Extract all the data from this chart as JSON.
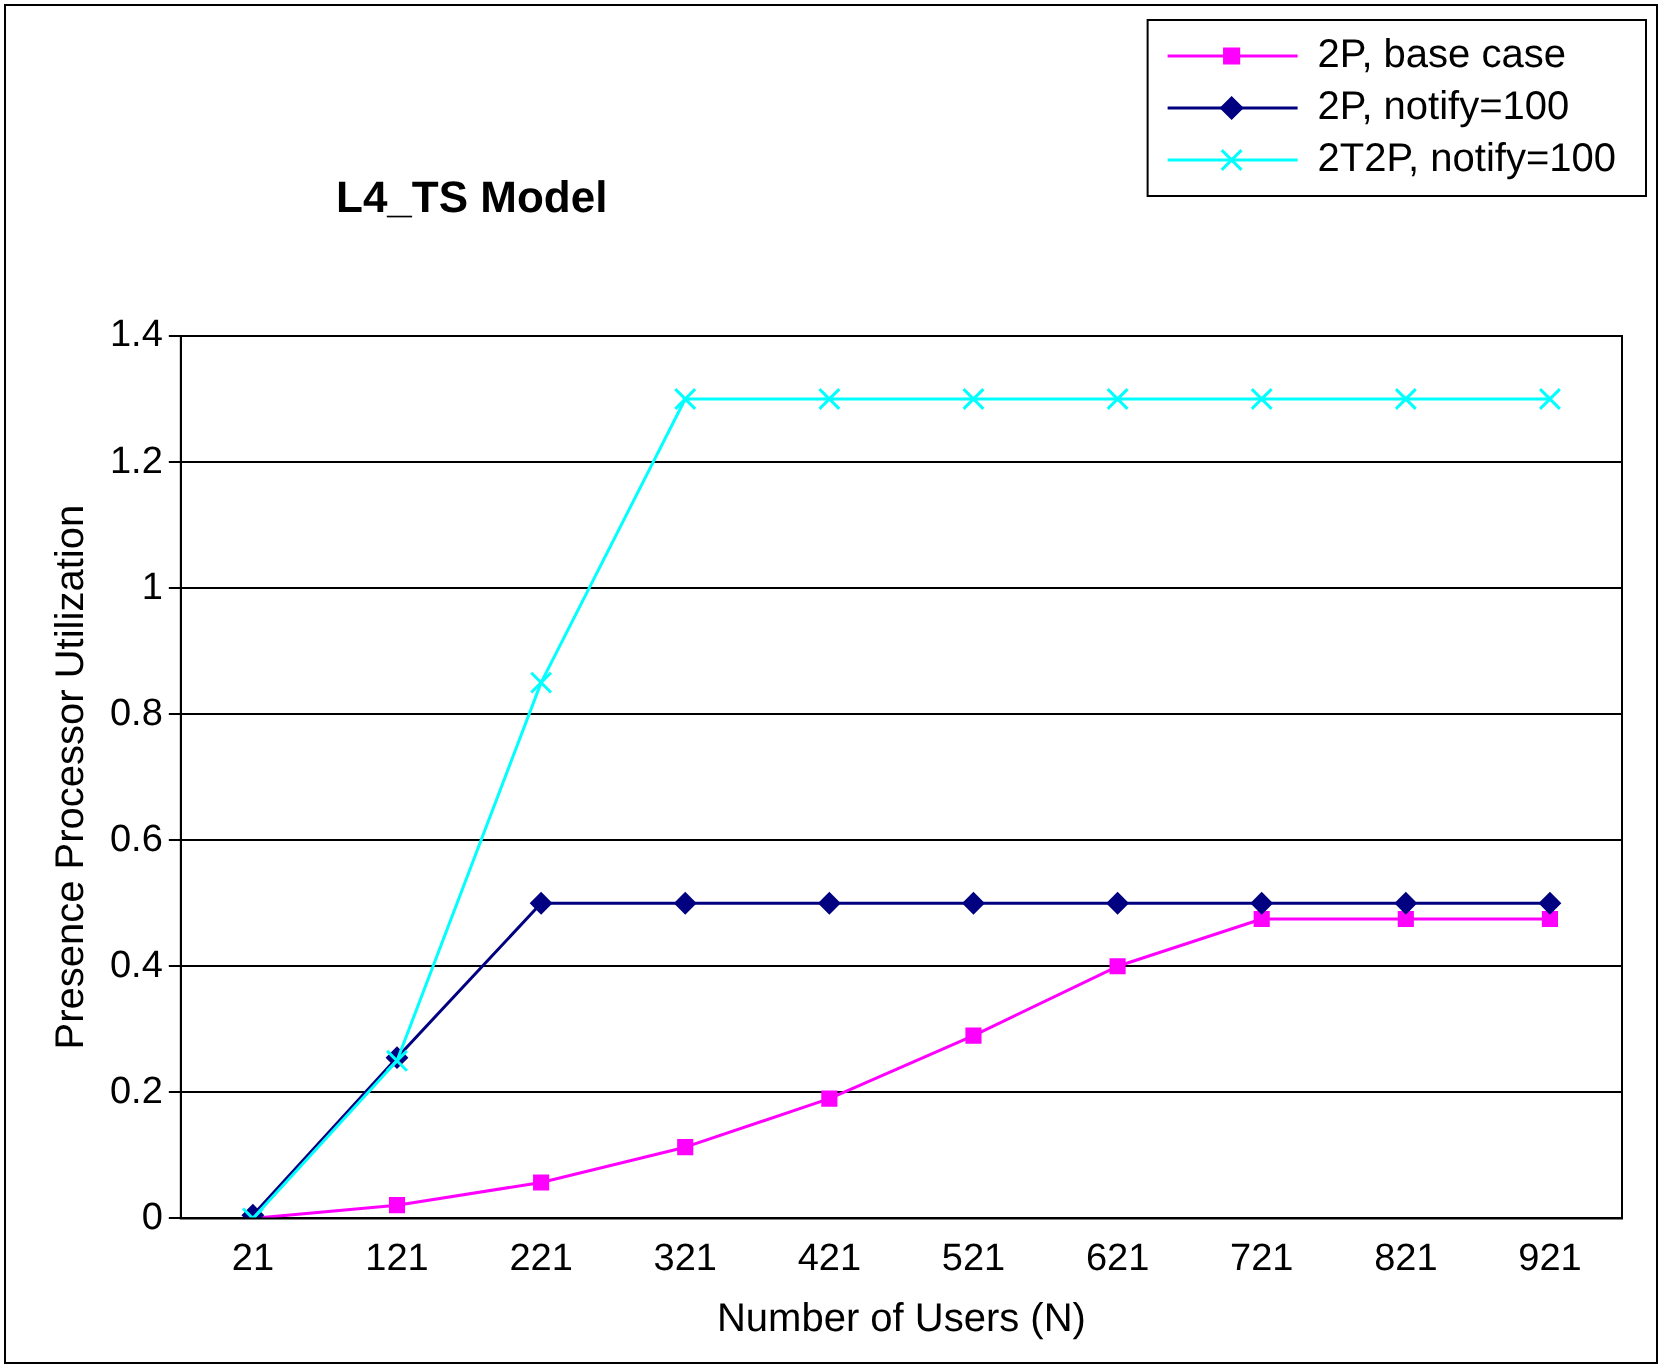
{
  "chart_data": {
    "type": "line",
    "title": "L4_TS Model",
    "xlabel": "Number of Users (N)",
    "ylabel": "Presence Processor Utilization",
    "categories": [
      "21",
      "121",
      "221",
      "321",
      "421",
      "521",
      "621",
      "721",
      "821",
      "921"
    ],
    "series": [
      {
        "name": "2P, base case",
        "color": "#ff00ff",
        "marker": "square",
        "values": [
          0,
          0.021,
          0.057,
          0.113,
          0.19,
          0.29,
          0.4,
          0.475,
          0.475,
          0.475
        ]
      },
      {
        "name": "2P, notify=100",
        "color": "#000080",
        "marker": "diamond",
        "values": [
          0.005,
          0.255,
          0.5,
          0.5,
          0.5,
          0.5,
          0.5,
          0.5,
          0.5,
          0.5
        ]
      },
      {
        "name": "2T2P, notify=100",
        "color": "#00ffff",
        "marker": "cross",
        "values": [
          0,
          0.25,
          0.85,
          1.3,
          1.3,
          1.3,
          1.3,
          1.3,
          1.3,
          1.3
        ]
      }
    ],
    "ylim": [
      0,
      1.4
    ],
    "yticks": [
      0,
      0.2,
      0.4,
      0.6,
      0.8,
      1,
      1.2,
      1.4
    ],
    "grid": "y",
    "legend": "top right"
  }
}
